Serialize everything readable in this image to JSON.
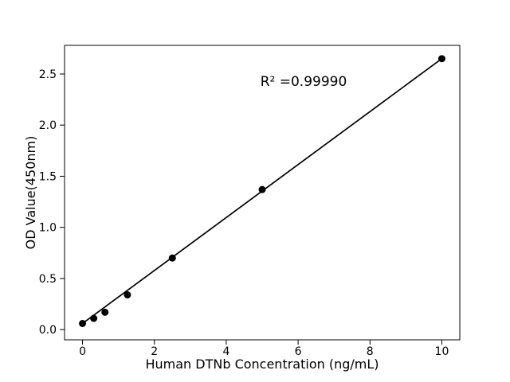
{
  "figure": {
    "background": "#ffffff",
    "foreground": "#000000"
  },
  "chart_data": {
    "type": "scatter",
    "title": "",
    "xlabel": "Human DTNb Concentration (ng/mL)",
    "ylabel": "OD Value(450nm)",
    "annotation": "R² =0.99990",
    "x": [
      0,
      0.3125,
      0.625,
      1.25,
      2.5,
      5,
      10
    ],
    "y": [
      0.06,
      0.11,
      0.17,
      0.34,
      0.7,
      1.37,
      2.65
    ],
    "fit_line": {
      "x": [
        0,
        10
      ],
      "y": [
        0.06,
        2.65
      ]
    },
    "xticks": [
      0,
      2,
      4,
      6,
      8,
      10
    ],
    "yticks": [
      0.0,
      0.5,
      1.0,
      1.5,
      2.0,
      2.5
    ],
    "xlim": [
      -0.5,
      10.5
    ],
    "ylim": [
      -0.1,
      2.78
    ],
    "grid": false,
    "legend": null,
    "marker_color": "#000000",
    "line_color": "#000000",
    "axis_color": "#000000"
  }
}
